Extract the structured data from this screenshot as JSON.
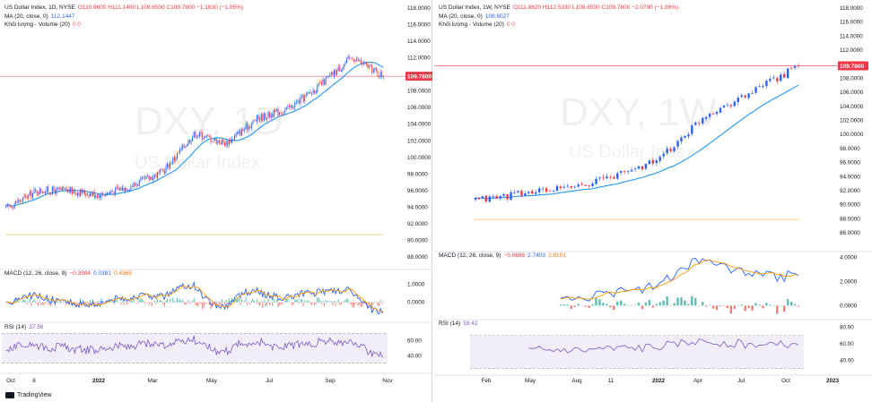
{
  "left": {
    "legend": {
      "title": "US Dollar Index, 1D, NYSE",
      "ohlc": "O110.9600  H111.1400  L109.6500  C109.7800  −1.1630 (−1.05%)",
      "ma_label": "MA (20, close, 0)",
      "ma_value": "112.1447",
      "volume_label": "Khối lượng - Volume (20)",
      "volume_value": "0  0",
      "macd_label": "MACD (12, 26, close, 9)",
      "macd_value": "−0.3984",
      "macd_signal": "0.0381",
      "macd_hist": "0.4365",
      "rsi_label": "RSI (14)",
      "rsi_value": "37.56"
    },
    "watermark": {
      "symbol": "DXY, 1D",
      "name": "US Dollar Index"
    },
    "price_tag": "109.7800",
    "price_axis": [
      "118.0000",
      "116.0000",
      "114.0000",
      "112.0000",
      "110.0000",
      "108.0000",
      "106.0000",
      "104.0000",
      "102.0000",
      "100.0000",
      "98.0000",
      "96.0000",
      "94.0000",
      "92.0000",
      "90.0000",
      "88.0000"
    ],
    "macd_axis": [
      "1.0000",
      "0.0000"
    ],
    "rsi_axis": [
      "60.00",
      "40.00"
    ],
    "time_axis": [
      "Oct",
      "8",
      "2022",
      "Mar",
      "May",
      "Jul",
      "Sep",
      "Nov"
    ]
  },
  "right": {
    "legend": {
      "title": "US Dollar Index, 1W, NYSE",
      "ohlc": "O111.8620  H112.5330  L109.6500  C109.7800  −2.0790 (−1.86%)",
      "ma_label": "MA (20, close, 0)",
      "ma_value": "108.6027",
      "volume_label": "Khối lượng - Volume (20)",
      "volume_value": "0  0",
      "macd_label": "MACD (12, 26, close, 9)",
      "macd_value": "−0.0698",
      "macd_signal": "2.7403",
      "macd_hist": "2.8101",
      "rsi_label": "RSI (14)",
      "rsi_value": "58.42"
    },
    "watermark": {
      "symbol": "DXY, 1W",
      "name": "US Dollar Index"
    },
    "price_tag": "109.7800",
    "price_axis": [
      "118.0000",
      "116.0000",
      "114.0000",
      "112.0000",
      "110.0000",
      "108.0000",
      "106.0000",
      "104.0000",
      "102.0000",
      "100.0000",
      "98.0000",
      "96.0000",
      "94.0000",
      "92.0000",
      "90.0000",
      "88.0000",
      "86.0000"
    ],
    "macd_axis": [
      "4.0000",
      "2.0000",
      "0.0000"
    ],
    "rsi_axis": [
      "80.00",
      "60.00",
      "40.00"
    ],
    "time_axis": [
      "Feb",
      "May",
      "Aug",
      "11",
      "2022",
      "Apr",
      "Jul",
      "Oct",
      "2023"
    ]
  },
  "brand": "TradingView",
  "colors": {
    "up": "#2962ff",
    "down": "#f23645",
    "ma": "#2196f3",
    "signal": "#ff9800",
    "rsi": "#7e57c2",
    "rsi_band": "#ede7f6",
    "hist_up": "#26a69a",
    "hist_down": "#ef5350"
  },
  "chart_data": [
    {
      "type": "candlestick",
      "title": "US Dollar Index, 1D, NYSE",
      "ylim": [
        88,
        118
      ],
      "x": [
        "2021-10",
        "2021-11",
        "2021-12",
        "2022-01",
        "2022-02",
        "2022-03",
        "2022-04",
        "2022-05",
        "2022-06",
        "2022-07",
        "2022-08",
        "2022-09",
        "2022-10"
      ],
      "close": [
        93.9,
        96.0,
        96.0,
        95.5,
        96.6,
        98.3,
        102.9,
        101.7,
        104.7,
        105.9,
        108.7,
        112.1,
        109.78
      ],
      "ma20_last": 112.1447,
      "horizontal_levels": [
        109.78,
        90.7
      ],
      "macd": {
        "last": -0.3984,
        "signal": 0.0381,
        "hist": 0.4365,
        "range": [
          -0.8,
          1.6
        ]
      },
      "rsi": {
        "last": 37.56,
        "bands": [
          30,
          70
        ]
      }
    },
    {
      "type": "candlestick",
      "title": "US Dollar Index, 1W, NYSE",
      "ylim": [
        86,
        118
      ],
      "x": [
        "2021-01",
        "2021-04",
        "2021-07",
        "2021-10",
        "2022-01",
        "2022-04",
        "2022-07",
        "2022-10"
      ],
      "close": [
        90.6,
        91.6,
        92.4,
        94.1,
        96.5,
        102.9,
        106.0,
        109.78
      ],
      "ma20_last": 108.6027,
      "horizontal_levels": [
        109.78,
        87.9
      ],
      "macd": {
        "last": -0.0698,
        "signal": 2.7403,
        "hist": 2.8101,
        "range": [
          -0.5,
          4.2
        ]
      },
      "rsi": {
        "last": 58.42,
        "bands": [
          30,
          70
        ]
      }
    }
  ]
}
